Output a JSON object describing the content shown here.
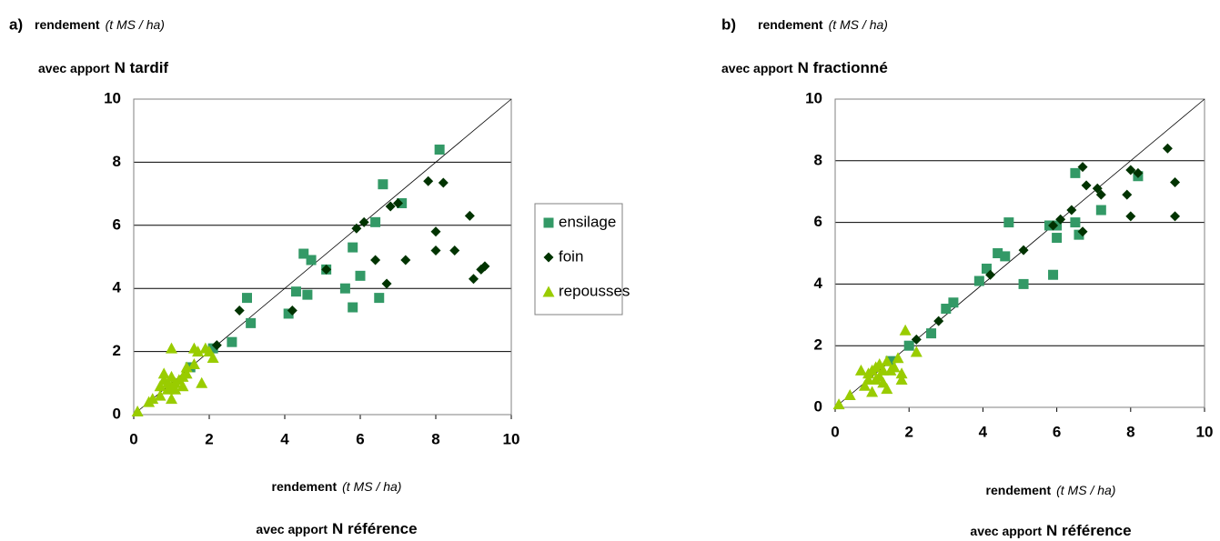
{
  "chart_data": [
    {
      "type": "scatter",
      "panel": "a)",
      "y_label": {
        "text": "rendement",
        "unit": "(t MS / ha)",
        "prefix": "avec apport",
        "emphasis": "N tardif"
      },
      "x_label": {
        "text": "rendement",
        "unit": "(t MS / ha)",
        "prefix": "avec apport",
        "emphasis": "N référence"
      },
      "xlim": [
        0,
        10
      ],
      "ylim": [
        0,
        10
      ],
      "xticks": [
        0,
        2,
        4,
        6,
        8,
        10
      ],
      "yticks": [
        0,
        2,
        4,
        6,
        8,
        10
      ],
      "grid": true,
      "series": [
        {
          "name": "ensilage",
          "marker": "square",
          "color": "#339966",
          "x": [
            8.1,
            6.6,
            7.1,
            6.4,
            4.5,
            4.7,
            5.8,
            5.1,
            6.0,
            3.0,
            4.3,
            4.6,
            5.6,
            6.5,
            4.1,
            5.8,
            3.1,
            2.6,
            2.1,
            1.5
          ],
          "values": [
            8.4,
            7.3,
            6.7,
            6.1,
            5.1,
            4.9,
            5.3,
            4.6,
            4.4,
            3.7,
            3.9,
            3.8,
            4.0,
            3.7,
            3.2,
            3.4,
            2.9,
            2.3,
            2.1,
            1.5
          ]
        },
        {
          "name": "foin",
          "marker": "diamond",
          "color": "#003300",
          "x": [
            7.8,
            8.2,
            7.0,
            6.8,
            6.1,
            5.9,
            8.9,
            8.0,
            5.1,
            6.4,
            7.2,
            8.5,
            8.0,
            9.2,
            9.3,
            9.0,
            6.7,
            4.2,
            2.8,
            2.2
          ],
          "values": [
            7.4,
            7.35,
            6.7,
            6.6,
            6.1,
            5.9,
            6.3,
            5.8,
            4.6,
            4.9,
            4.9,
            5.2,
            5.2,
            4.6,
            4.7,
            4.3,
            4.15,
            3.3,
            3.3,
            2.2
          ]
        },
        {
          "name": "repousses",
          "marker": "triangle",
          "color": "#99cc00",
          "x": [
            0.1,
            0.4,
            0.5,
            0.7,
            0.7,
            0.8,
            0.8,
            0.9,
            0.9,
            1.0,
            1.0,
            1.0,
            1.1,
            1.1,
            1.2,
            1.3,
            1.3,
            1.4,
            1.6,
            1.6,
            1.7,
            1.8,
            1.9,
            2.0,
            2.1,
            1.0,
            1.4
          ],
          "values": [
            0.1,
            0.4,
            0.5,
            0.6,
            0.9,
            1.1,
            1.3,
            0.8,
            1.0,
            0.9,
            1.2,
            2.1,
            0.8,
            1.0,
            1.1,
            0.9,
            1.2,
            1.5,
            1.6,
            2.1,
            2.0,
            1.0,
            2.1,
            2.0,
            1.8,
            0.5,
            1.3
          ]
        }
      ]
    },
    {
      "type": "scatter",
      "panel": "b)",
      "y_label": {
        "text": "rendement",
        "unit": "(t MS / ha)",
        "prefix": "avec apport",
        "emphasis": "N fractionné"
      },
      "x_label": {
        "text": "rendement",
        "unit": "(t MS / ha)",
        "prefix": "avec apport",
        "emphasis": "N référence"
      },
      "xlim": [
        0,
        10
      ],
      "ylim": [
        0,
        10
      ],
      "xticks": [
        0,
        2,
        4,
        6,
        8,
        10
      ],
      "yticks": [
        0,
        2,
        4,
        6,
        8,
        10
      ],
      "grid": true,
      "series": [
        {
          "name": "ensilage",
          "marker": "square",
          "color": "#339966",
          "x": [
            6.5,
            8.2,
            7.2,
            6.5,
            6.0,
            5.8,
            4.7,
            4.4,
            4.6,
            6.0,
            6.6,
            4.1,
            3.9,
            5.1,
            5.9,
            3.2,
            3.0,
            2.6,
            2.0,
            1.5
          ],
          "values": [
            7.6,
            7.5,
            6.4,
            6.0,
            5.9,
            5.9,
            6.0,
            5.0,
            4.9,
            5.5,
            5.6,
            4.5,
            4.1,
            4.0,
            4.3,
            3.4,
            3.2,
            2.4,
            2.0,
            1.5
          ]
        },
        {
          "name": "foin",
          "marker": "diamond",
          "color": "#003300",
          "x": [
            9.0,
            6.7,
            8.0,
            8.2,
            6.8,
            7.1,
            7.2,
            7.9,
            9.2,
            6.4,
            6.1,
            5.9,
            6.7,
            8.0,
            9.2,
            5.1,
            4.2,
            2.8,
            2.2
          ],
          "values": [
            8.4,
            7.8,
            7.7,
            7.6,
            7.2,
            7.1,
            6.9,
            6.9,
            7.3,
            6.4,
            6.1,
            5.9,
            5.7,
            6.2,
            6.2,
            5.1,
            4.3,
            2.8,
            2.2
          ]
        },
        {
          "name": "repousses",
          "marker": "triangle",
          "color": "#99cc00",
          "x": [
            0.1,
            0.4,
            0.7,
            0.8,
            0.9,
            0.9,
            1.0,
            1.0,
            1.1,
            1.1,
            1.2,
            1.2,
            1.3,
            1.3,
            1.4,
            1.4,
            1.6,
            1.7,
            1.8,
            1.8,
            1.9,
            2.2,
            1.5
          ],
          "values": [
            0.1,
            0.4,
            1.2,
            0.7,
            0.9,
            1.1,
            0.5,
            1.2,
            0.9,
            1.3,
            1.0,
            1.4,
            0.8,
            1.2,
            1.5,
            0.6,
            1.3,
            1.6,
            1.1,
            0.9,
            2.5,
            1.8,
            1.2
          ]
        }
      ]
    }
  ]
}
